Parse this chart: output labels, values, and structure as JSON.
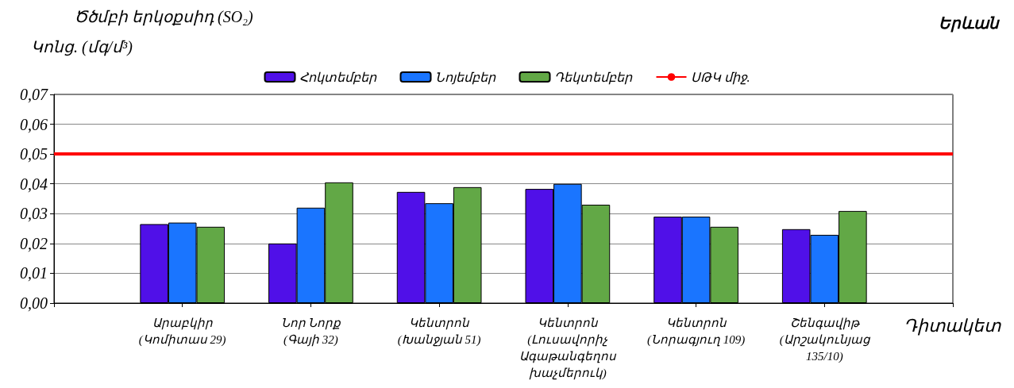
{
  "chart_data": {
    "type": "bar",
    "title": "Ծծմբի երկօքսիդ (SO₂)",
    "subtitle": "Երևան",
    "ylabel": "Կոնց. (մգ/մ³)",
    "xlabel": "Դիտակետ",
    "categories": [
      null,
      "Արաբկիր\n(Կոմիտաս 29)",
      "Նոր Նորք\n(Գայի 32)",
      "Կենտրոն\n(Խանջյան 51)",
      "Կենտրոն\n(Լուսավորիչ\nԱգաթանգեղոս\nխաչմերուկ)",
      "Կենտրոն\n(Նորագյուղ 109)",
      "Շենգավիթ\n(Արշակունյաց\n135/10)",
      null
    ],
    "series": [
      {
        "name": "Հոկտեմբեր",
        "color": "#5010e8",
        "values": [
          null,
          0.0265,
          0.02,
          0.0373,
          0.0383,
          0.029,
          0.0248,
          null
        ]
      },
      {
        "name": "Նոյեմբեր",
        "color": "#1a75ff",
        "values": [
          null,
          0.027,
          0.032,
          0.0335,
          0.04,
          0.029,
          0.0229,
          null
        ]
      },
      {
        "name": "Դեկտեմբեր",
        "color": "#62a846",
        "values": [
          null,
          0.0256,
          0.0405,
          0.0389,
          0.033,
          0.0256,
          0.0309,
          null
        ]
      }
    ],
    "ref_lines": [
      {
        "axis": "y",
        "value": 0.05,
        "label": "ՍԹԿ միջ.",
        "color": "#ff0000"
      }
    ],
    "ylim": [
      0,
      0.07
    ],
    "yticks": [
      {
        "value": 0,
        "label": "0,00"
      },
      {
        "value": 0.01,
        "label": "0,01"
      },
      {
        "value": 0.02,
        "label": "0,02"
      },
      {
        "value": 0.03,
        "label": "0,03"
      },
      {
        "value": 0.04,
        "label": "0,04"
      },
      {
        "value": 0.05,
        "label": "0,05"
      },
      {
        "value": 0.06,
        "label": "0,06"
      },
      {
        "value": 0.07,
        "label": "0,07"
      }
    ],
    "grid": "y",
    "legend": "top"
  }
}
